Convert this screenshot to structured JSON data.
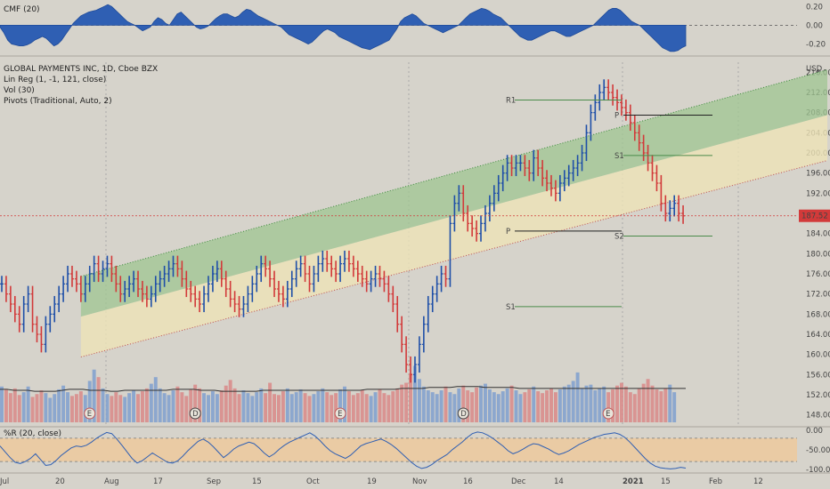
{
  "chart_data": [
    {
      "type": "area",
      "title": "CMF (20)",
      "ylim": [
        -0.3,
        0.25
      ],
      "yticks": [
        {
          "v": 0.2,
          "label": "0.20"
        },
        {
          "v": 0.0,
          "label": "0.00"
        },
        {
          "v": -0.2,
          "label": "-0.20"
        }
      ],
      "series": [
        {
          "color": "#2f5fb3",
          "values": [
            -0.02,
            -0.08,
            -0.16,
            -0.2,
            -0.21,
            -0.22,
            -0.22,
            -0.21,
            -0.19,
            -0.16,
            -0.14,
            -0.12,
            -0.14,
            -0.18,
            -0.22,
            -0.2,
            -0.16,
            -0.1,
            -0.04,
            0.02,
            0.06,
            0.1,
            0.12,
            0.14,
            0.15,
            0.16,
            0.18,
            0.2,
            0.22,
            0.2,
            0.16,
            0.12,
            0.08,
            0.04,
            0.02,
            0.0,
            -0.03,
            -0.06,
            -0.04,
            -0.02,
            0.04,
            0.08,
            0.06,
            0.02,
            0.0,
            0.06,
            0.12,
            0.14,
            0.1,
            0.06,
            0.02,
            -0.02,
            -0.04,
            -0.03,
            -0.01,
            0.03,
            0.07,
            0.1,
            0.12,
            0.12,
            0.1,
            0.08,
            0.1,
            0.14,
            0.17,
            0.16,
            0.13,
            0.1,
            0.08,
            0.06,
            0.04,
            0.02,
            0.0,
            -0.02,
            -0.06,
            -0.1,
            -0.12,
            -0.14,
            -0.16,
            -0.18,
            -0.2,
            -0.18,
            -0.14,
            -0.1,
            -0.06,
            -0.04,
            -0.06,
            -0.08,
            -0.12,
            -0.14,
            -0.16,
            -0.18,
            -0.2,
            -0.22,
            -0.24,
            -0.25,
            -0.26,
            -0.24,
            -0.22,
            -0.2,
            -0.18,
            -0.16,
            -0.1,
            -0.04,
            0.04,
            0.08,
            0.1,
            0.12,
            0.1,
            0.06,
            0.02,
            0.0,
            -0.02,
            -0.04,
            -0.06,
            -0.08,
            -0.06,
            -0.04,
            -0.02,
            0.0,
            0.04,
            0.08,
            0.12,
            0.14,
            0.16,
            0.18,
            0.17,
            0.15,
            0.12,
            0.1,
            0.08,
            0.04,
            0.0,
            -0.04,
            -0.08,
            -0.12,
            -0.14,
            -0.16,
            -0.16,
            -0.14,
            -0.12,
            -0.1,
            -0.08,
            -0.06,
            -0.06,
            -0.08,
            -0.1,
            -0.12,
            -0.12,
            -0.1,
            -0.08,
            -0.06,
            -0.04,
            -0.02,
            0.0,
            0.04,
            0.08,
            0.12,
            0.16,
            0.18,
            0.18,
            0.16,
            0.12,
            0.08,
            0.04,
            0.02,
            0.0,
            -0.04,
            -0.08,
            -0.12,
            -0.16,
            -0.2,
            -0.24,
            -0.26,
            -0.28,
            -0.28,
            -0.27,
            -0.24,
            -0.22
          ]
        }
      ]
    },
    {
      "type": "line",
      "title": "GLOBAL PAYMENTS INC, 1D, Cboe BZX",
      "legend": [
        "Lin Reg (1, -1, 121, close)",
        "Vol (30)",
        "Pivots (Traditional, Auto, 2)"
      ],
      "unit": "USD",
      "ylim": [
        146,
        218
      ],
      "yticks": [
        216,
        212,
        208,
        204,
        200,
        196,
        192,
        188,
        184,
        180,
        176,
        172,
        168,
        164,
        160,
        156,
        152,
        148
      ],
      "ytick_labels": [
        "216.00",
        "212.00",
        "208.00",
        "204.00",
        "200.00",
        "196.00",
        "192.00",
        "188.00",
        "184.00",
        "180.00",
        "176.00",
        "172.00",
        "168.00",
        "164.00",
        "160.00",
        "156.00",
        "152.00",
        "148.00"
      ],
      "last_price": 187.52,
      "last_price_label": "187.52",
      "x_labels": [
        "Jul",
        "20",
        "Aug",
        "17",
        "Sep",
        "15",
        "Oct",
        "19",
        "Nov",
        "16",
        "Dec",
        "14",
        "2021",
        "15",
        "Feb",
        "12"
      ],
      "bars_close": [
        174,
        172,
        170,
        168,
        166,
        170,
        172,
        166,
        164,
        162,
        166,
        168,
        170,
        172,
        174,
        176,
        175,
        174,
        172,
        174,
        176,
        178,
        176,
        177,
        178,
        176,
        174,
        172,
        173,
        174,
        175,
        173,
        172,
        171,
        172,
        174,
        175,
        176,
        177,
        178,
        177,
        175,
        173,
        172,
        171,
        170,
        172,
        174,
        176,
        177,
        175,
        173,
        171,
        170,
        169,
        170,
        172,
        174,
        176,
        178,
        177,
        175,
        173,
        172,
        171,
        173,
        175,
        177,
        178,
        176,
        174,
        176,
        178,
        179,
        178,
        177,
        176,
        178,
        179,
        178,
        177,
        176,
        175,
        174,
        175,
        176,
        175,
        174,
        172,
        170,
        166,
        162,
        158,
        156,
        158,
        162,
        166,
        170,
        172,
        174,
        176,
        175,
        186,
        190,
        192,
        188,
        186,
        185,
        184,
        186,
        188,
        190,
        192,
        194,
        196,
        198,
        197,
        198,
        198,
        197,
        196,
        199,
        197,
        195,
        194,
        193,
        192,
        194,
        195,
        196,
        197,
        198,
        200,
        204,
        208,
        210,
        212,
        213,
        212,
        211,
        210,
        209,
        208,
        206,
        204,
        202,
        200,
        198,
        196,
        194,
        190,
        188,
        189,
        190,
        188,
        187.52
      ],
      "volume": [
        3.8,
        3.5,
        3.1,
        3.6,
        2.9,
        3.2,
        3.8,
        2.7,
        3.0,
        3.4,
        3.1,
        2.6,
        3.0,
        3.5,
        3.9,
        3.2,
        2.8,
        3.0,
        3.3,
        2.9,
        4.4,
        5.6,
        4.8,
        3.6,
        3.0,
        2.8,
        3.2,
        2.9,
        2.7,
        3.1,
        3.4,
        3.0,
        3.3,
        3.6,
        4.1,
        4.8,
        3.6,
        3.1,
        2.9,
        3.4,
        3.8,
        3.2,
        2.8,
        3.5,
        4.0,
        3.6,
        3.1,
        2.9,
        3.3,
        3.0,
        3.4,
        3.9,
        4.5,
        3.6,
        3.0,
        3.4,
        3.1,
        2.8,
        3.2,
        3.6,
        3.1,
        4.2,
        3.0,
        2.9,
        3.3,
        3.6,
        3.0,
        3.2,
        3.5,
        3.1,
        2.8,
        3.0,
        3.3,
        3.6,
        3.2,
        2.9,
        3.1,
        3.5,
        3.8,
        3.3,
        2.9,
        3.1,
        3.4,
        3.0,
        2.8,
        3.2,
        3.5,
        3.1,
        2.9,
        3.3,
        3.6,
        4.0,
        4.2,
        5.2,
        6.0,
        4.6,
        3.8,
        3.4,
        3.2,
        3.0,
        3.4,
        3.8,
        3.2,
        3.0,
        3.6,
        3.9,
        3.4,
        3.2,
        3.7,
        3.9,
        4.1,
        3.5,
        3.2,
        3.0,
        3.3,
        3.6,
        3.9,
        3.4,
        3.0,
        3.2,
        3.5,
        3.8,
        3.3,
        3.1,
        3.4,
        3.6,
        3.2,
        3.5,
        3.8,
        4.0,
        4.4,
        5.3,
        3.6,
        3.9,
        4.0,
        3.4,
        3.6,
        3.8,
        3.2,
        3.5,
        3.9,
        4.2,
        3.8,
        3.2,
        3.0,
        3.6,
        4.1,
        4.6,
        3.9,
        3.5,
        3.3,
        3.6,
        4.0,
        3.2
      ],
      "volume_ma": [
        3.5,
        3.5,
        3.4,
        3.4,
        3.4,
        3.3,
        3.3,
        3.3,
        3.3,
        3.4,
        3.5,
        3.5,
        3.5,
        3.4,
        3.4,
        3.4,
        3.3,
        3.3,
        3.4,
        3.4,
        3.4,
        3.4,
        3.4,
        3.4,
        3.4,
        3.5,
        3.5,
        3.5,
        3.5,
        3.4,
        3.4,
        3.4,
        3.3,
        3.3,
        3.3,
        3.3,
        3.3,
        3.3,
        3.4,
        3.4,
        3.4,
        3.4,
        3.4,
        3.4,
        3.4,
        3.4,
        3.4,
        3.4,
        3.4,
        3.4,
        3.4,
        3.4,
        3.4,
        3.5,
        3.5,
        3.5,
        3.5,
        3.5,
        3.6,
        3.6,
        3.6,
        3.6,
        3.7,
        3.7,
        3.7,
        3.7,
        3.8,
        3.8,
        3.8,
        3.8,
        3.7,
        3.7,
        3.7,
        3.7,
        3.7,
        3.6,
        3.6,
        3.6,
        3.6,
        3.6,
        3.6,
        3.6,
        3.6,
        3.6,
        3.6,
        3.6,
        3.6,
        3.6,
        3.6,
        3.6,
        3.6,
        3.6,
        3.6,
        3.6,
        3.6,
        3.6,
        3.6,
        3.6,
        3.6,
        3.6
      ],
      "pivots_period_1": {
        "R1": 210.5,
        "P": 207.5,
        "S1": 199.5,
        "S2": 183.5
      },
      "pivots_period_2": {
        "R1": 210.5,
        "P": 184.5,
        "S1": 169.5
      },
      "markers": [
        {
          "label": "E",
          "x_index": 20,
          "color": "#c05858"
        },
        {
          "label": "D",
          "x_index": 44,
          "color": "#444"
        },
        {
          "label": "E",
          "x_index": 77,
          "color": "#c05858"
        },
        {
          "label": "D",
          "x_index": 105,
          "color": "#444"
        },
        {
          "label": "E",
          "x_index": 138,
          "color": "#c05858"
        }
      ]
    },
    {
      "type": "line",
      "title": "%R (20, close)",
      "ylim": [
        -105,
        5
      ],
      "yticks": [
        {
          "v": 0,
          "label": "0.00"
        },
        {
          "v": -50,
          "label": "-50.00"
        },
        {
          "v": -100,
          "label": "-100.00"
        }
      ],
      "band": [
        -80,
        -20
      ],
      "series": [
        {
          "color": "#2f5fb3",
          "values": [
            -40,
            -55,
            -70,
            -82,
            -85,
            -80,
            -72,
            -60,
            -75,
            -90,
            -88,
            -78,
            -65,
            -55,
            -45,
            -40,
            -42,
            -38,
            -30,
            -20,
            -12,
            -5,
            -8,
            -22,
            -38,
            -55,
            -72,
            -84,
            -78,
            -68,
            -58,
            -66,
            -74,
            -82,
            -84,
            -78,
            -66,
            -52,
            -40,
            -28,
            -22,
            -30,
            -42,
            -56,
            -70,
            -60,
            -48,
            -40,
            -35,
            -30,
            -34,
            -45,
            -58,
            -68,
            -60,
            -48,
            -38,
            -30,
            -24,
            -18,
            -12,
            -6,
            -14,
            -26,
            -40,
            -52,
            -60,
            -66,
            -72,
            -64,
            -52,
            -40,
            -34,
            -30,
            -26,
            -22,
            -28,
            -36,
            -46,
            -58,
            -70,
            -82,
            -92,
            -98,
            -95,
            -88,
            -78,
            -70,
            -62,
            -50,
            -40,
            -30,
            -18,
            -8,
            -4,
            -6,
            -12,
            -20,
            -30,
            -40,
            -52,
            -60,
            -55,
            -48,
            -40,
            -34,
            -36,
            -42,
            -48,
            -56,
            -62,
            -58,
            -52,
            -44,
            -36,
            -30,
            -24,
            -18,
            -14,
            -10,
            -8,
            -6,
            -10,
            -18,
            -30,
            -44,
            -58,
            -72,
            -84,
            -92,
            -96,
            -98,
            -99,
            -98,
            -95,
            -97
          ]
        }
      ]
    }
  ]
}
